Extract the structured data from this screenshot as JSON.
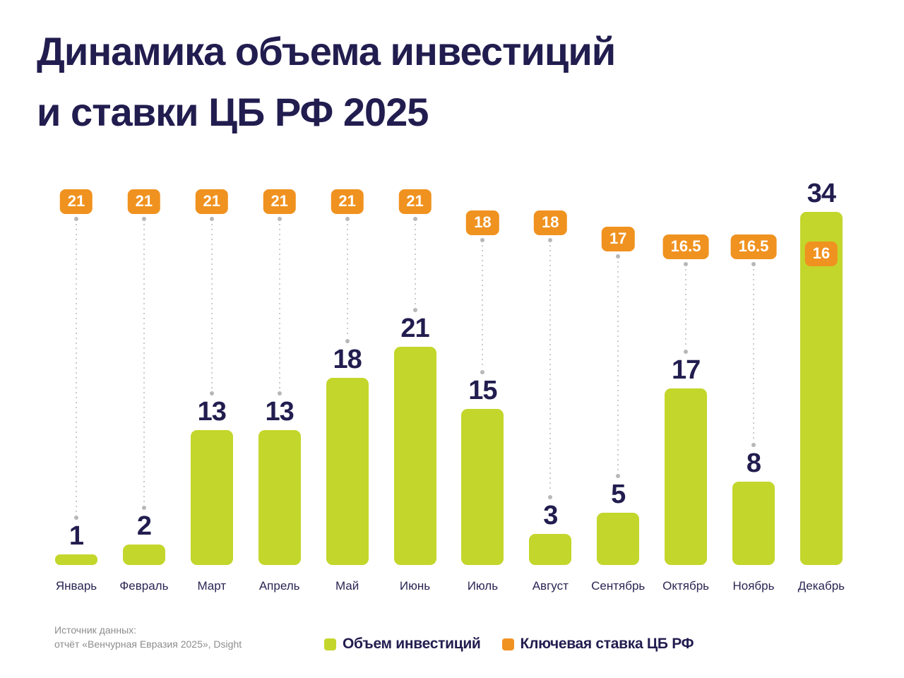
{
  "title": {
    "line1": "Динамика объема инвестиций",
    "line2": "и ставки ЦБ РФ 2025"
  },
  "source": {
    "line1": "Источник данных:",
    "line2": "отчёт «Венчурная Евразия 2025», Dsight"
  },
  "legend": [
    {
      "label": "Объем инвестиций",
      "color": "#c3d62b"
    },
    {
      "label": "Ключевая ставка ЦБ РФ",
      "color": "#f0921f"
    }
  ],
  "colors": {
    "background": "#ffffff",
    "navy_text": "#221d4f",
    "bar_green": "#c3d62b",
    "badge_orange": "#f0921f",
    "dotted_line": "#cbcbcb",
    "source_gray": "#8d8d8d"
  },
  "chart_data": {
    "type": "bar",
    "title": "Динамика объема инвестиций и ставки ЦБ РФ 2025",
    "xlabel": "",
    "ylabel": "",
    "grid": false,
    "legend_position": "bottom",
    "categories": [
      "Январь",
      "Февраль",
      "Март",
      "Апрель",
      "Май",
      "Июнь",
      "Июль",
      "Август",
      "Сентябрь",
      "Октябрь",
      "Ноябрь",
      "Декабрь"
    ],
    "series": [
      {
        "name": "Объем инвестиций",
        "type": "bar",
        "color": "#c3d62b",
        "values": [
          1,
          2,
          13,
          13,
          18,
          21,
          15,
          3,
          5,
          17,
          8,
          34
        ]
      },
      {
        "name": "Ключевая ставка ЦБ РФ",
        "type": "value-badges",
        "color": "#f0921f",
        "values": [
          21,
          21,
          21,
          21,
          21,
          21,
          18,
          18,
          17,
          16.5,
          16.5,
          16
        ]
      }
    ]
  }
}
